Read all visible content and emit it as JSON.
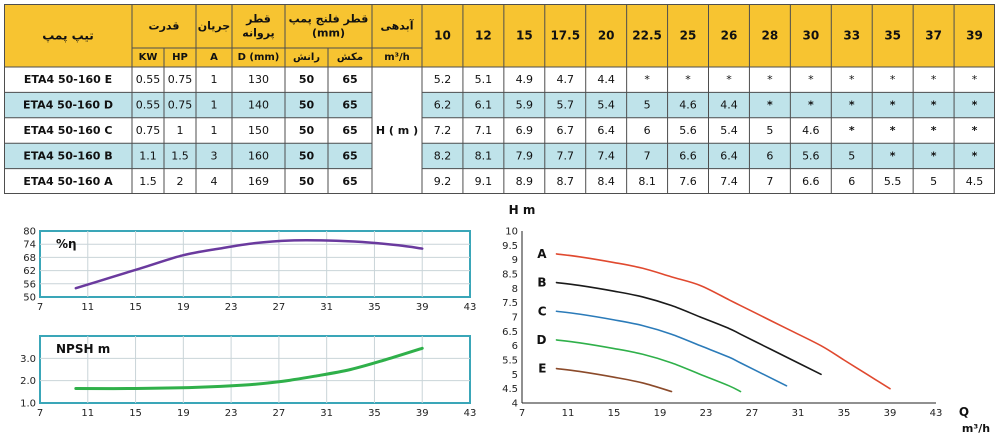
{
  "table": {
    "headers": {
      "model": "تیپ پمپ",
      "power": "قدرت",
      "current": "جریان",
      "impeller": "قطر پروانه",
      "flange": "قطر فلنج پمپ (mm)",
      "flow_label": "آبدهی",
      "flow_unit": "m³/h",
      "kw": "KW",
      "hp": "HP",
      "a": "A",
      "d": "D (mm)",
      "discharge": "رانش",
      "suction": "مکش",
      "head": "H ( m )"
    },
    "flows": [
      "10",
      "12",
      "15",
      "17.5",
      "20",
      "22.5",
      "25",
      "26",
      "28",
      "30",
      "33",
      "35",
      "37",
      "39"
    ],
    "rows": [
      {
        "model": "ETA4 50-160 E",
        "kw": "0.55",
        "hp": "0.75",
        "a": "1",
        "d": "130",
        "discharge": "50",
        "suction": "65",
        "h": [
          "5.2",
          "5.1",
          "4.9",
          "4.7",
          "4.4",
          "*",
          "*",
          "*",
          "*",
          "*",
          "*",
          "*",
          "*",
          "*"
        ]
      },
      {
        "model": "ETA4 50-160 D",
        "kw": "0.55",
        "hp": "0.75",
        "a": "1",
        "d": "140",
        "discharge": "50",
        "suction": "65",
        "h": [
          "6.2",
          "6.1",
          "5.9",
          "5.7",
          "5.4",
          "5",
          "4.6",
          "4.4",
          "*",
          "*",
          "*",
          "*",
          "*",
          "*"
        ]
      },
      {
        "model": "ETA4 50-160 C",
        "kw": "0.75",
        "hp": "1",
        "a": "1",
        "d": "150",
        "discharge": "50",
        "suction": "65",
        "h": [
          "7.2",
          "7.1",
          "6.9",
          "6.7",
          "6.4",
          "6",
          "5.6",
          "5.4",
          "5",
          "4.6",
          "*",
          "*",
          "*",
          "*"
        ]
      },
      {
        "model": "ETA4 50-160 B",
        "kw": "1.1",
        "hp": "1.5",
        "a": "3",
        "d": "160",
        "discharge": "50",
        "suction": "65",
        "h": [
          "8.2",
          "8.1",
          "7.9",
          "7.7",
          "7.4",
          "7",
          "6.6",
          "6.4",
          "6",
          "5.6",
          "5",
          "*",
          "*",
          "*"
        ]
      },
      {
        "model": "ETA4 50-160 A",
        "kw": "1.5",
        "hp": "2",
        "a": "4",
        "d": "169",
        "discharge": "50",
        "suction": "65",
        "h": [
          "9.2",
          "9.1",
          "8.9",
          "8.7",
          "8.4",
          "8.1",
          "7.6",
          "7.4",
          "7",
          "6.6",
          "6",
          "5.5",
          "5",
          "4.5"
        ]
      }
    ]
  },
  "colors": {
    "header": "#F7C431",
    "row_alt": "#BFE3EA",
    "border": "#4E4E4E",
    "panel_border": "#3AA6B8",
    "grid": "#C9D4D8",
    "eff_line": "#6A3A9E",
    "npsh_line": "#2FB04A"
  },
  "chart_data": [
    {
      "type": "line",
      "ylabel": "%η",
      "x": [
        10,
        13,
        16,
        19,
        22,
        25,
        28,
        31,
        34,
        37,
        39
      ],
      "series": [
        {
          "values": [
            54,
            59,
            64,
            69,
            72,
            74.5,
            75.7,
            75.7,
            75,
            73.5,
            72
          ]
        }
      ],
      "xlim": [
        7,
        43
      ],
      "ylim": [
        50,
        80
      ],
      "xticks": [
        "7",
        "11",
        "15",
        "19",
        "23",
        "27",
        "31",
        "35",
        "39",
        "43"
      ],
      "yticks": [
        "50",
        "56",
        "62",
        "68",
        "74",
        "80"
      ],
      "grid": true
    },
    {
      "type": "line",
      "ylabel": "NPSH m",
      "x": [
        10,
        15,
        20,
        24,
        27,
        30,
        33,
        36,
        39
      ],
      "series": [
        {
          "values": [
            1.65,
            1.65,
            1.7,
            1.8,
            1.95,
            2.2,
            2.5,
            2.95,
            3.45
          ]
        }
      ],
      "xlim": [
        7,
        43
      ],
      "ylim": [
        1,
        4
      ],
      "xticks": [
        "7",
        "11",
        "15",
        "19",
        "23",
        "27",
        "31",
        "35",
        "39",
        "43"
      ],
      "yticks": [
        "1.0",
        "2.0",
        "3.0"
      ],
      "grid": true
    },
    {
      "type": "line",
      "ylabel": "H m",
      "xlabel": "Q",
      "xunit": "m³/h",
      "x": [
        10,
        12,
        15,
        17.5,
        20,
        22.5,
        25,
        26,
        28,
        30,
        33,
        35,
        37,
        39
      ],
      "series": [
        {
          "name": "A",
          "color": "#E0492F",
          "values": [
            9.2,
            9.1,
            8.9,
            8.7,
            8.4,
            8.1,
            7.6,
            7.4,
            7,
            6.6,
            6,
            5.5,
            5,
            4.5
          ]
        },
        {
          "name": "B",
          "color": "#1A1A1A",
          "values": [
            8.2,
            8.1,
            7.9,
            7.7,
            7.4,
            7,
            6.6,
            6.4,
            6,
            5.6,
            5,
            null,
            null,
            null
          ]
        },
        {
          "name": "C",
          "color": "#2B7BB9",
          "values": [
            7.2,
            7.1,
            6.9,
            6.7,
            6.4,
            6,
            5.6,
            5.4,
            5,
            4.6,
            null,
            null,
            null,
            null
          ]
        },
        {
          "name": "D",
          "color": "#2FB04A",
          "values": [
            6.2,
            6.1,
            5.9,
            5.7,
            5.4,
            5,
            4.6,
            4.4,
            null,
            null,
            null,
            null,
            null,
            null
          ]
        },
        {
          "name": "E",
          "color": "#8B4A2A",
          "values": [
            5.2,
            5.1,
            4.9,
            4.7,
            4.4,
            null,
            null,
            null,
            null,
            null,
            null,
            null,
            null,
            null
          ]
        }
      ],
      "xlim": [
        7,
        43
      ],
      "ylim": [
        4,
        10
      ],
      "xticks": [
        "7",
        "11",
        "15",
        "19",
        "23",
        "27",
        "31",
        "35",
        "39",
        "43"
      ],
      "yticks": [
        "4",
        "4.5",
        "5",
        "5.5",
        "6",
        "6.5",
        "7",
        "7.5",
        "8",
        "8.5",
        "9",
        "9.5",
        "10"
      ],
      "grid": false
    }
  ]
}
